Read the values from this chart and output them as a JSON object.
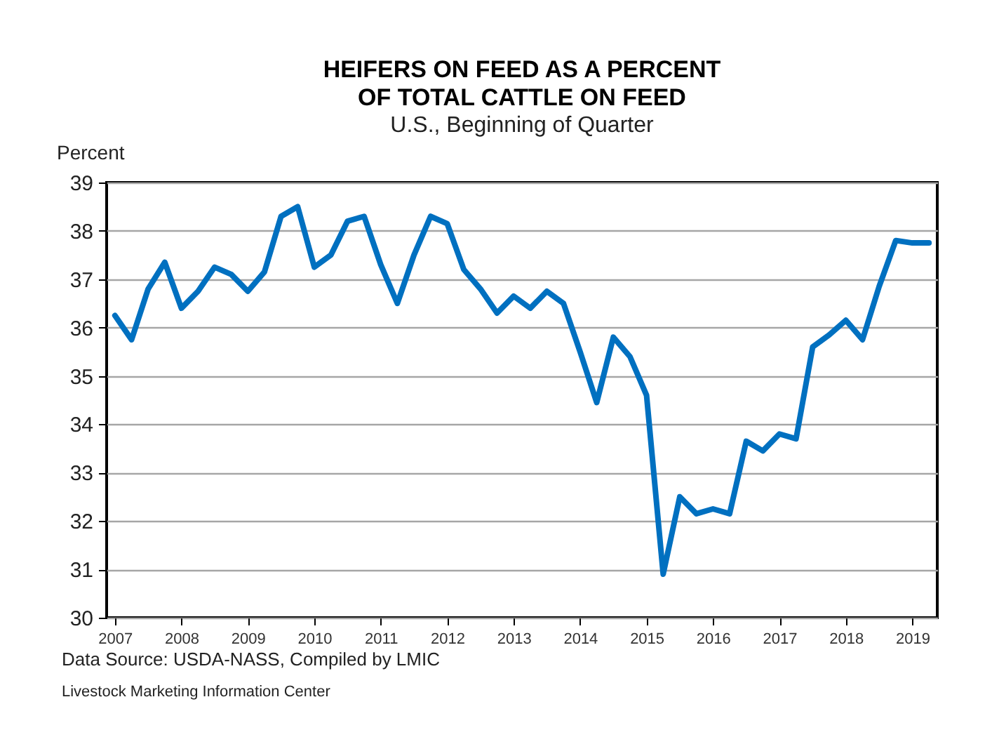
{
  "chart_data": {
    "type": "line",
    "title": "HEIFERS ON FEED AS A PERCENT\nOF TOTAL CATTLE ON FEED",
    "subtitle": "U.S., Beginning of Quarter",
    "ylabel": "Percent",
    "annotations": [
      "Data Source:  USDA-NASS, Compiled  by LMIC",
      "Livestock Marketing Information Center"
    ],
    "x": [
      2007,
      2007.25,
      2007.5,
      2007.75,
      2008,
      2008.25,
      2008.5,
      2008.75,
      2009,
      2009.25,
      2009.5,
      2009.75,
      2010,
      2010.25,
      2010.5,
      2010.75,
      2011,
      2011.25,
      2011.5,
      2011.75,
      2012,
      2012.25,
      2012.5,
      2012.75,
      2013,
      2013.25,
      2013.5,
      2013.75,
      2014,
      2014.25,
      2014.5,
      2014.75,
      2015,
      2015.25,
      2015.5,
      2015.75,
      2016,
      2016.25,
      2016.5,
      2016.75,
      2017,
      2017.25,
      2017.5,
      2017.75,
      2018,
      2018.25,
      2018.5,
      2018.75,
      2019,
      2019.25
    ],
    "series": [
      {
        "color": "#0070c0",
        "values": [
          36.25,
          35.75,
          36.8,
          37.35,
          36.4,
          36.75,
          37.25,
          37.1,
          36.75,
          37.15,
          38.3,
          38.5,
          37.25,
          37.5,
          38.2,
          38.3,
          37.3,
          36.5,
          37.5,
          38.3,
          38.15,
          37.2,
          36.8,
          36.3,
          36.65,
          36.4,
          36.75,
          36.5,
          35.5,
          34.45,
          35.8,
          35.4,
          34.6,
          30.9,
          32.5,
          32.15,
          32.25,
          32.15,
          33.65,
          33.45,
          33.8,
          33.7,
          35.6,
          35.85,
          36.15,
          35.75,
          36.85,
          37.8,
          37.75,
          37.75
        ]
      }
    ],
    "xlim": [
      2006.875,
      2019.375
    ],
    "xticks": [
      2007,
      2008,
      2009,
      2010,
      2011,
      2012,
      2013,
      2014,
      2015,
      2016,
      2017,
      2018,
      2019
    ],
    "ylim": [
      30,
      39
    ],
    "yticks": [
      30,
      31,
      32,
      33,
      34,
      35,
      36,
      37,
      38,
      39
    ],
    "grid": "y",
    "legend": false,
    "marker": "none",
    "line_style": "solid"
  }
}
